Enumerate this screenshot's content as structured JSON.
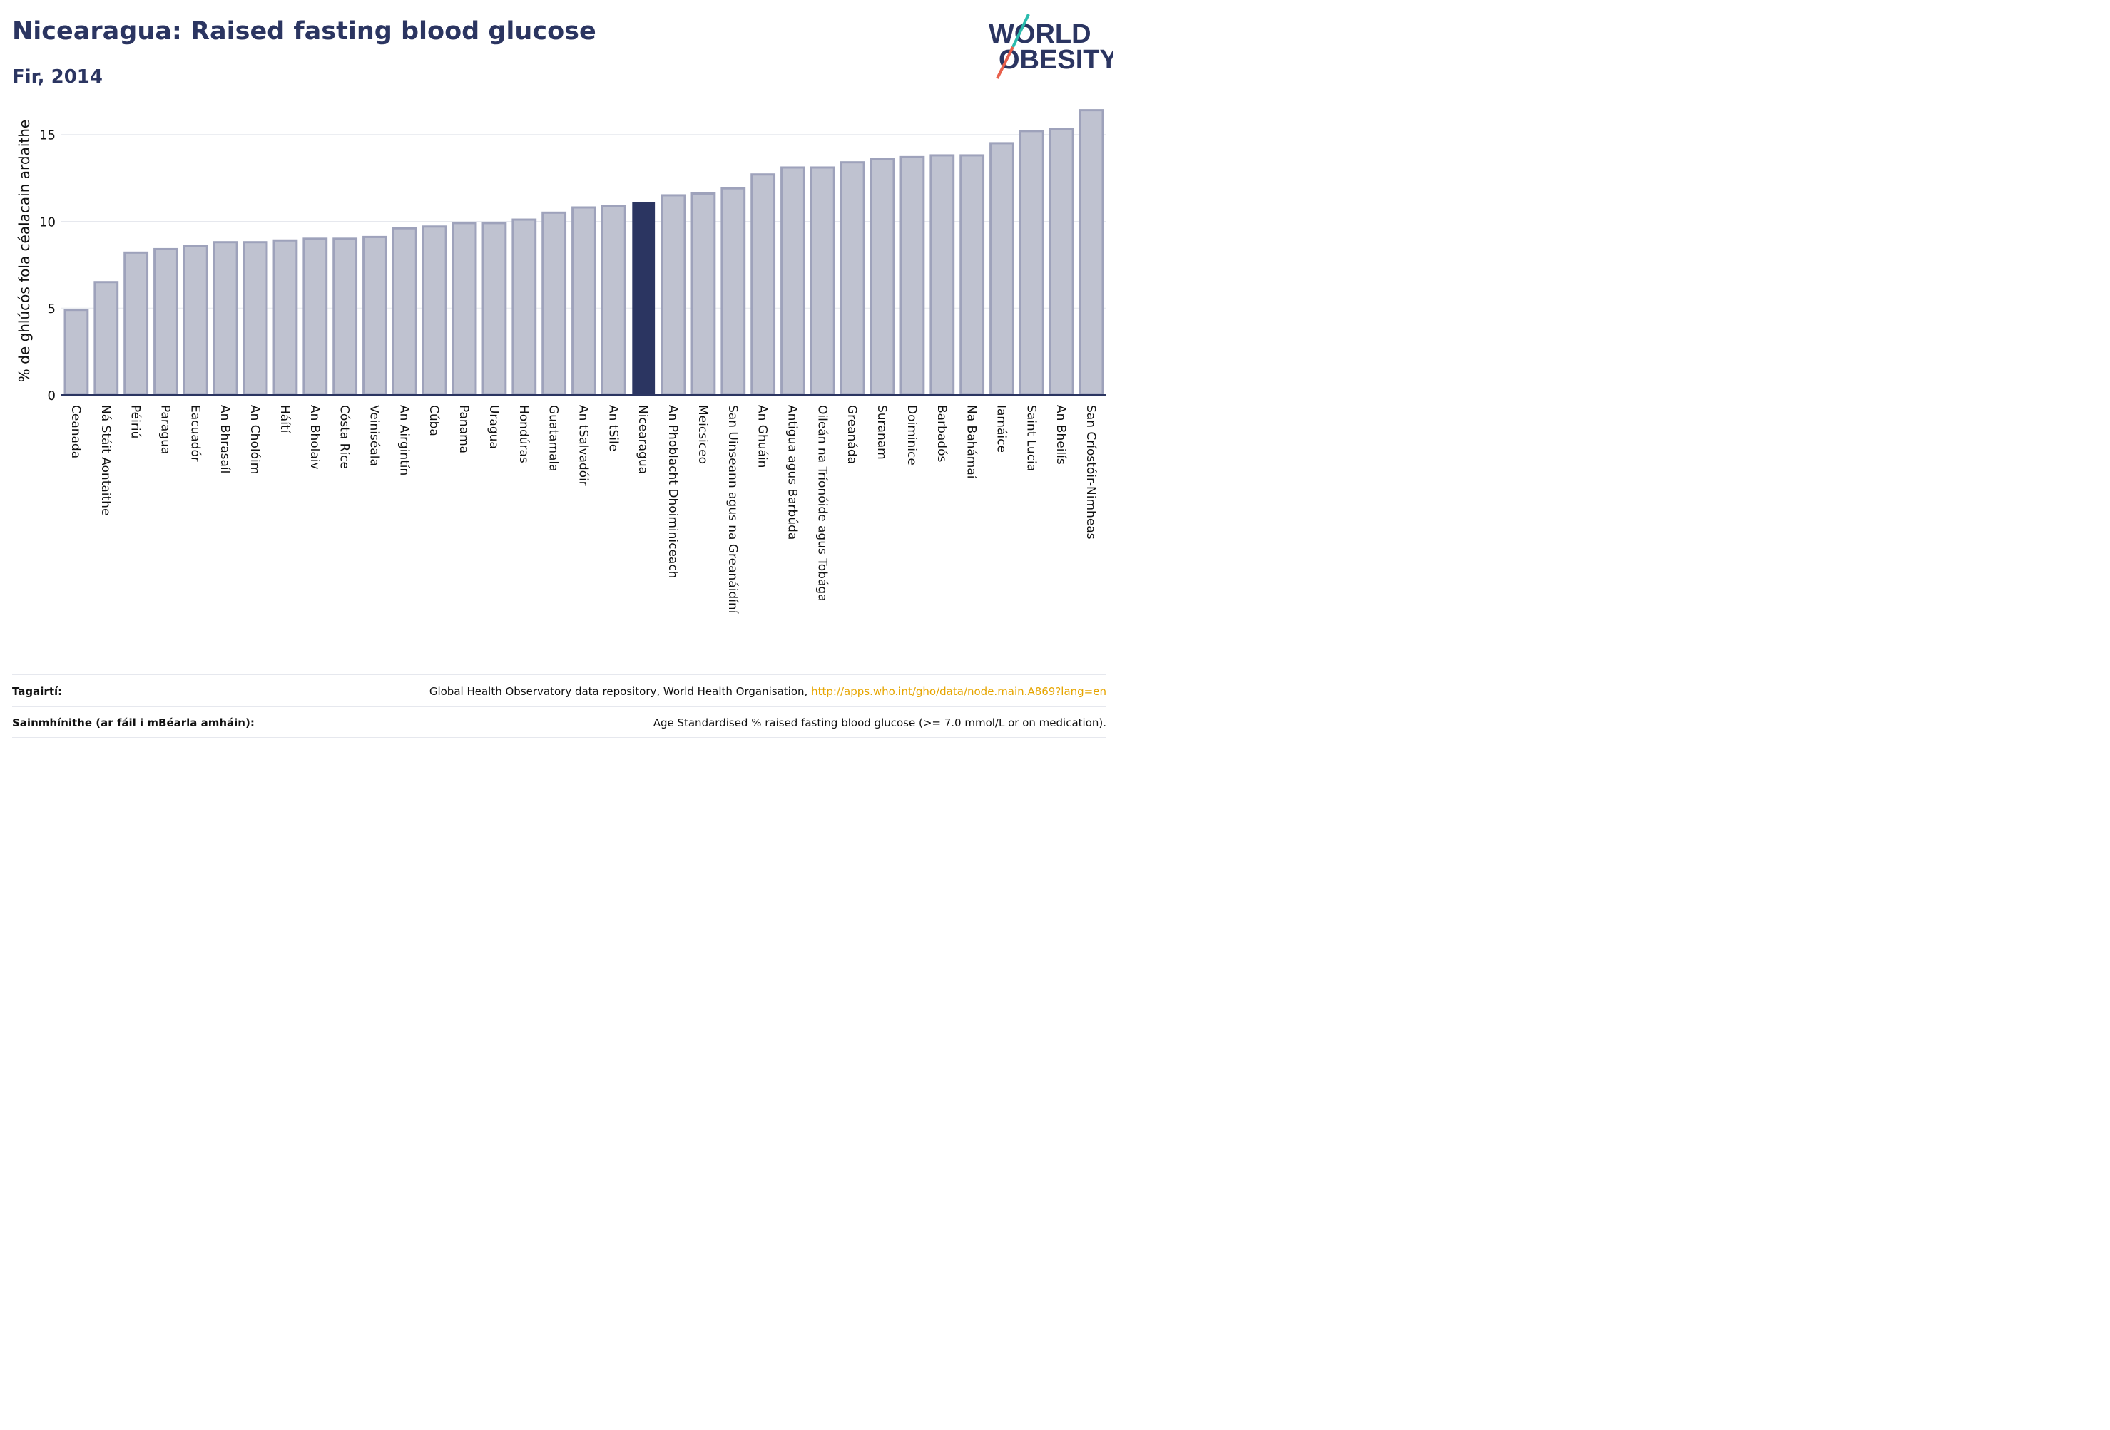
{
  "header": {
    "title": "Nicearagua: Raised fasting blood glucose",
    "subtitle": "Fir, 2014"
  },
  "logo": {
    "line1_pre": "W",
    "line1_mid": "O",
    "line1_post": "RLD",
    "line2": "OBESITY",
    "colors": {
      "text": "#2b3561",
      "slash_teal": "#2bbbad",
      "slash_red": "#e8604c"
    }
  },
  "chart_data": {
    "type": "bar",
    "title": "Nicearagua: Raised fasting blood glucose",
    "subtitle": "Fir, 2014",
    "ylabel": "% de ghlúcós fola céalacain ardaithe",
    "xlabel": "",
    "ylim": [
      0,
      17
    ],
    "yticks": [
      0,
      5,
      10,
      15
    ],
    "grid": true,
    "highlight": "Nicearagua",
    "colors": {
      "bar": "#bfc2d0",
      "bar_edge": "#9ea2bb",
      "highlight": "#2b3561",
      "axis": "#2b3561",
      "grid": "#e6e8ee"
    },
    "categories": [
      "Ceanada",
      "Ná Stáit Aontaithe",
      "Péiriú",
      "Paragua",
      "Eacuadór",
      "An Bhrasaíl",
      "An Cholóim",
      "Háítí",
      "An Bholaiv",
      "Cósta Ríce",
      "Veiniséala",
      "An Airgintín",
      "Cúba",
      "Panama",
      "Uragua",
      "Hondúras",
      "Guatamala",
      "An tSalvadóir",
      "An tSile",
      "Nicearagua",
      "An Phoblacht Dhoiminiceach",
      "Meicsiceo",
      "San Uinseann agus na Greanáidíní",
      "An Ghuáin",
      "Antigua agus Barbúda",
      "Oileán na Tríonóide agus Tobága",
      "Greanáda",
      "Suranam",
      "Doiminice",
      "Barbadós",
      "Na Bahámaí",
      "Iamáice",
      "Saint Lucia",
      "An Bheilís",
      "San Críostóir-Nimheas"
    ],
    "values": [
      4.9,
      6.5,
      8.2,
      8.4,
      8.6,
      8.8,
      8.8,
      8.9,
      9.0,
      9.0,
      9.1,
      9.6,
      9.7,
      9.9,
      9.9,
      10.1,
      10.5,
      10.8,
      10.9,
      11.1,
      11.5,
      11.6,
      11.9,
      12.7,
      13.1,
      13.1,
      13.4,
      13.6,
      13.7,
      13.8,
      13.8,
      14.5,
      15.2,
      15.3,
      16.4
    ]
  },
  "footer": {
    "references_label": "Tagairtí:",
    "references_text": "Global Health Observatory data repository, World Health Organisation, ",
    "references_link": "http://apps.who.int/gho/data/node.main.A869?lang=en",
    "definitions_label": "Sainmhínithe (ar fáil i mBéarla amháin):",
    "definitions_text": "Age Standardised % raised fasting blood glucose (>= 7.0 mmol/L or on medication)."
  }
}
